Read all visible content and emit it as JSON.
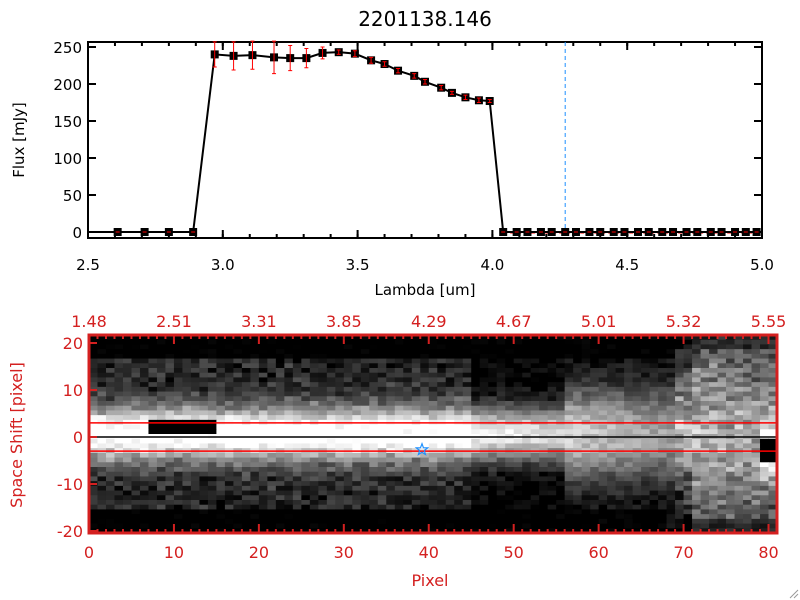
{
  "chart_data": [
    {
      "type": "line",
      "title": "2201138.146",
      "xlabel": "Lambda [um]",
      "ylabel": "Flux [mJy]",
      "xlim": [
        2.5,
        5.0
      ],
      "ylim": [
        -10,
        260
      ],
      "xticks": [
        "2.5",
        "3.0",
        "3.5",
        "4.0",
        "4.5",
        "5.0"
      ],
      "yticks": [
        "0",
        "50",
        "100",
        "150",
        "200",
        "250"
      ],
      "series": [
        {
          "x": [
            2.61,
            2.71,
            2.8,
            2.89,
            2.97,
            3.04,
            3.11,
            3.19,
            3.25,
            3.31,
            3.37,
            3.43,
            3.49,
            3.55,
            3.6,
            3.65,
            3.71,
            3.75,
            3.81,
            3.85,
            3.9,
            3.95,
            3.99,
            4.04,
            4.09,
            4.13,
            4.18,
            4.22,
            4.27,
            4.31,
            4.36,
            4.4,
            4.45,
            4.49,
            4.54,
            4.58,
            4.63,
            4.67,
            4.72,
            4.76,
            4.81,
            4.85,
            4.9,
            4.94,
            4.98
          ],
          "y": [
            0,
            0,
            0,
            0,
            240,
            238,
            239,
            236,
            235,
            235,
            242,
            243,
            241,
            232,
            227,
            218,
            211,
            203,
            195,
            188,
            182,
            178,
            177,
            0,
            0,
            0,
            0,
            0,
            0,
            0,
            0,
            0,
            0,
            0,
            0,
            0,
            0,
            0,
            0,
            0,
            0,
            0,
            0,
            0,
            0
          ],
          "yerr": [
            0,
            0,
            0,
            0,
            17,
            19,
            19,
            22,
            17,
            13,
            8,
            3,
            4,
            4,
            3,
            3,
            3,
            3,
            3,
            2,
            3,
            3,
            2,
            0,
            0,
            0,
            0,
            0,
            0,
            0,
            0,
            0,
            0,
            0,
            0,
            0,
            0,
            0,
            0,
            0,
            0,
            0,
            0,
            0,
            0
          ]
        }
      ],
      "vline_x": 4.27,
      "colors": {
        "line": "#000000",
        "errorbar": "#ff0000",
        "vline": "#1e90ff",
        "baseline": "#ff0000"
      }
    },
    {
      "type": "heatmap",
      "xlabel": "Pixel",
      "ylabel": "Space Shift [pixel]",
      "xlim": [
        0,
        81
      ],
      "ylim": [
        -21,
        21
      ],
      "xticks": [
        "0",
        "10",
        "20",
        "30",
        "40",
        "50",
        "60",
        "70",
        "80"
      ],
      "yticks": [
        "20",
        "10",
        "0",
        "-10",
        "-20"
      ],
      "top_xticks": [
        "1.48",
        "2.51",
        "3.31",
        "3.85",
        "4.29",
        "4.67",
        "5.01",
        "5.32",
        "5.55"
      ],
      "hlines_red": [
        3,
        -3
      ],
      "hline_black": 0,
      "marker": {
        "x": 39.2,
        "y": -2.7,
        "symbol": "star"
      },
      "colormap": "grayscale",
      "colors": {
        "axis": "#d42020",
        "marker": "#1e90ff"
      }
    }
  ]
}
